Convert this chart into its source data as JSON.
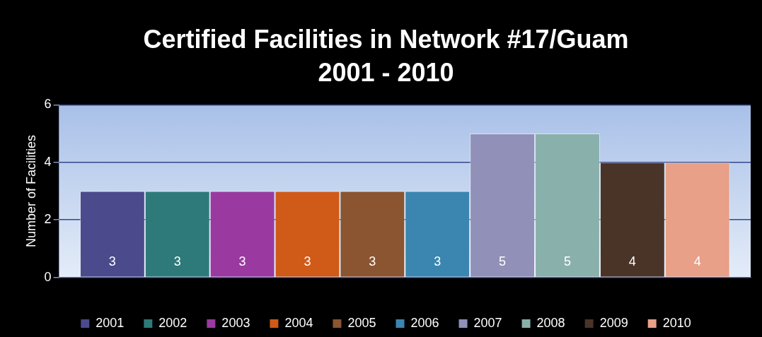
{
  "chart_data": {
    "type": "bar",
    "title": "Certified Facilities in Network #17/Guam",
    "subtitle": "2001 - 2010",
    "ylabel": "Number of Facilities",
    "categories": [
      null
    ],
    "series": [
      {
        "name": "2001",
        "color": "#4a4a8c",
        "values": [
          3
        ]
      },
      {
        "name": "2002",
        "color": "#2e7a7a",
        "values": [
          3
        ]
      },
      {
        "name": "2003",
        "color": "#9a3aa0",
        "values": [
          3
        ]
      },
      {
        "name": "2004",
        "color": "#d05a18",
        "values": [
          3
        ]
      },
      {
        "name": "2005",
        "color": "#8a5530",
        "values": [
          3
        ]
      },
      {
        "name": "2006",
        "color": "#3a86b0",
        "values": [
          3
        ]
      },
      {
        "name": "2007",
        "color": "#9090b8",
        "values": [
          5
        ]
      },
      {
        "name": "2008",
        "color": "#8ab0ac",
        "values": [
          5
        ]
      },
      {
        "name": "2009",
        "color": "#4a3428",
        "values": [
          4
        ]
      },
      {
        "name": "2010",
        "color": "#e8a088",
        "values": [
          4
        ]
      }
    ],
    "ylim": [
      0,
      6
    ],
    "yticks": [
      0,
      2,
      4,
      6
    ],
    "grid": "y",
    "legend": "bottom",
    "data_labels": true
  }
}
